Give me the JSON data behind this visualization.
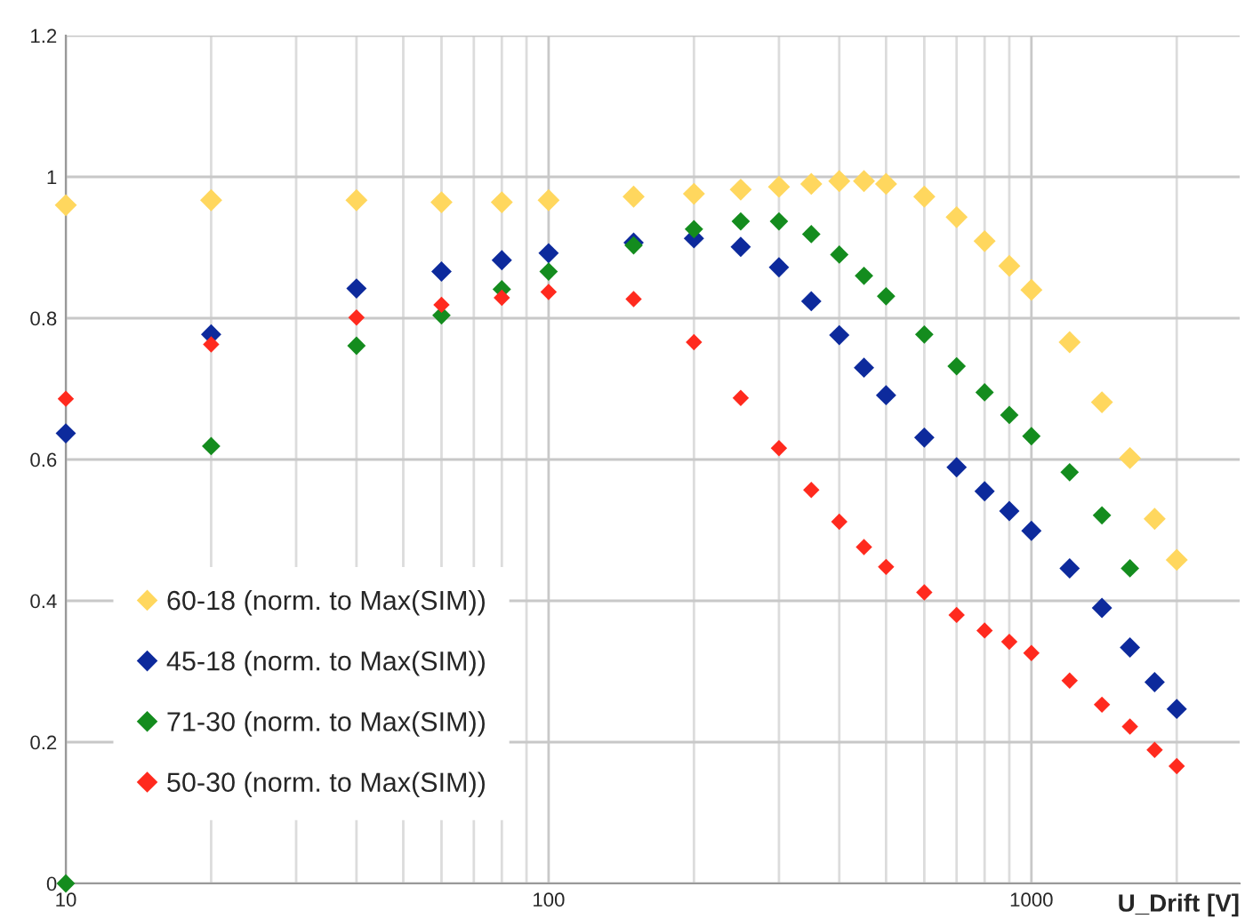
{
  "chart_data": {
    "type": "scatter",
    "xlabel": "U_Drift [V]",
    "log": "x",
    "marker": "diamond",
    "grid": true,
    "legend": "bottom left",
    "x": [
      10,
      20,
      40,
      60,
      80,
      100,
      150,
      200,
      250,
      300,
      350,
      400,
      450,
      500,
      600,
      700,
      800,
      900,
      1000,
      1200,
      1400,
      1600,
      1800,
      2000
    ],
    "xlim": [
      10,
      2700
    ],
    "xticks": [
      10,
      100,
      1000
    ],
    "ylim": [
      0,
      1.2
    ],
    "yticks": [
      0,
      0.2,
      0.4,
      0.6,
      0.8,
      1,
      1.2
    ],
    "series": [
      {
        "name": "60-18 (norm. to Max(SIM))",
        "color": "#ffd75e",
        "values": [
          0.96,
          0.967,
          0.967,
          0.964,
          0.964,
          0.967,
          0.972,
          0.976,
          0.982,
          0.986,
          0.99,
          0.994,
          0.994,
          0.99,
          0.972,
          0.943,
          0.909,
          0.874,
          0.84,
          0.766,
          0.681,
          0.602,
          0.516,
          0.458
        ]
      },
      {
        "name": "45-18 (norm. to Max(SIM))",
        "color": "#0d2a9c",
        "values": [
          0.637,
          0.777,
          0.842,
          0.866,
          0.882,
          0.892,
          0.907,
          0.913,
          0.901,
          0.872,
          0.824,
          0.776,
          0.73,
          0.691,
          0.631,
          0.589,
          0.555,
          0.527,
          0.499,
          0.446,
          0.39,
          0.334,
          0.285,
          0.247
        ]
      },
      {
        "name": "71-30 (norm. to Max(SIM))",
        "color": "#148c1e",
        "values": [
          0,
          0.619,
          0.761,
          0.804,
          0.841,
          0.866,
          0.903,
          0.926,
          0.937,
          0.937,
          0.919,
          0.89,
          0.86,
          0.831,
          0.777,
          0.732,
          0.695,
          0.663,
          0.633,
          0.582,
          0.521,
          0.446,
          null,
          null
        ]
      },
      {
        "name": "50-30 (norm. to Max(SIM))",
        "color": "#ff2a1e",
        "values": [
          0.686,
          0.763,
          0.801,
          0.819,
          0.829,
          0.837,
          0.827,
          0.766,
          0.687,
          0.616,
          0.557,
          0.512,
          0.476,
          0.448,
          0.412,
          0.38,
          0.358,
          0.342,
          0.326,
          0.287,
          0.253,
          0.222,
          0.189,
          0.166
        ]
      }
    ]
  }
}
